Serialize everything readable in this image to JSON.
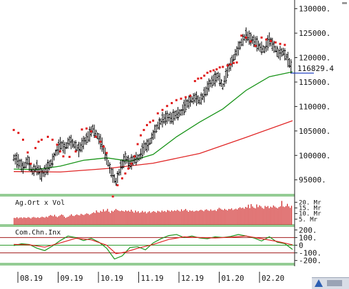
{
  "chart_data": [
    {
      "type": "line",
      "pane": "price",
      "title": "",
      "x_ticks": [
        "08.19",
        "09.19",
        "10.19",
        "11.19",
        "12.19",
        "01.20",
        "02.20"
      ],
      "y_ticks": [
        "130000.",
        "125000.",
        "120000.",
        "115000.",
        "110000.",
        "105000.",
        "100000.",
        "95000."
      ],
      "ylim": [
        92000,
        131500
      ],
      "last_price_label": "116829.4",
      "last_price": 116829.4,
      "series": [
        {
          "style": "ohlc-bars",
          "color": "#000000",
          "points": [
            [
              0,
              99500
            ],
            [
              3,
              98800
            ],
            [
              6,
              97500
            ],
            [
              9,
              99000
            ],
            [
              12,
              96800
            ],
            [
              15,
              97500
            ],
            [
              18,
              96000
            ],
            [
              21,
              97200
            ],
            [
              24,
              98300
            ],
            [
              27,
              100500
            ],
            [
              30,
              102300
            ],
            [
              33,
              101500
            ],
            [
              36,
              103000
            ],
            [
              39,
              102200
            ],
            [
              42,
              101200
            ],
            [
              45,
              102600
            ],
            [
              48,
              103800
            ],
            [
              51,
              105400
            ],
            [
              54,
              104000
            ],
            [
              57,
              102200
            ],
            [
              60,
              99300
            ],
            [
              63,
              96500
            ],
            [
              66,
              94600
            ],
            [
              69,
              97500
            ],
            [
              72,
              99500
            ],
            [
              75,
              98400
            ],
            [
              78,
              99200
            ],
            [
              81,
              99600
            ],
            [
              84,
              101600
            ],
            [
              87,
              102200
            ],
            [
              90,
              104200
            ],
            [
              93,
              106100
            ],
            [
              96,
              107300
            ],
            [
              99,
              107800
            ],
            [
              102,
              107600
            ],
            [
              105,
              108400
            ],
            [
              108,
              108800
            ],
            [
              111,
              110300
            ],
            [
              114,
              111200
            ],
            [
              117,
              111800
            ],
            [
              120,
              111200
            ],
            [
              123,
              112400
            ],
            [
              126,
              114400
            ],
            [
              129,
              115400
            ],
            [
              132,
              116200
            ],
            [
              135,
              114100
            ],
            [
              138,
              117300
            ],
            [
              141,
              119300
            ],
            [
              144,
              121300
            ],
            [
              147,
              123100
            ],
            [
              150,
              124600
            ],
            [
              153,
              123800
            ],
            [
              156,
              123200
            ],
            [
              159,
              122100
            ],
            [
              162,
              121600
            ],
            [
              165,
              123700
            ],
            [
              168,
              122200
            ],
            [
              171,
              120800
            ],
            [
              174,
              121200
            ],
            [
              177,
              119600
            ],
            [
              180,
              117500
            ]
          ]
        },
        {
          "style": "line",
          "color": "#179317",
          "points": [
            [
              0,
              97200
            ],
            [
              15,
              97100
            ],
            [
              30,
              97800
            ],
            [
              45,
              99000
            ],
            [
              60,
              99500
            ],
            [
              75,
              98800
            ],
            [
              90,
              100200
            ],
            [
              105,
              103800
            ],
            [
              120,
              106800
            ],
            [
              135,
              109500
            ],
            [
              150,
              113300
            ],
            [
              165,
              116100
            ],
            [
              180,
              117100
            ]
          ]
        },
        {
          "style": "line",
          "color": "#e02424",
          "points": [
            [
              0,
              96700
            ],
            [
              30,
              96600
            ],
            [
              60,
              97300
            ],
            [
              90,
              98400
            ],
            [
              120,
              100400
            ],
            [
              150,
              103700
            ],
            [
              180,
              107100
            ]
          ]
        },
        {
          "style": "dots",
          "color": "#e01818",
          "points": [
            [
              0,
              105200
            ],
            [
              3,
              104600
            ],
            [
              6,
              103200
            ],
            [
              9,
              100600
            ],
            [
              11,
              98300
            ],
            [
              14,
              101500
            ],
            [
              16,
              102800
            ],
            [
              18,
              103200
            ],
            [
              22,
              103800
            ],
            [
              25,
              103200
            ],
            [
              28,
              102200
            ],
            [
              30,
              100800
            ],
            [
              32,
              99800
            ],
            [
              36,
              99700
            ],
            [
              40,
              100800
            ],
            [
              44,
              105300
            ],
            [
              47,
              105500
            ],
            [
              50,
              104900
            ],
            [
              53,
              103800
            ],
            [
              56,
              102800
            ],
            [
              58,
              101800
            ],
            [
              60,
              100500
            ],
            [
              64,
              91600
            ],
            [
              67,
              93900
            ],
            [
              70,
              95300
            ],
            [
              72,
              96300
            ],
            [
              74,
              97300
            ],
            [
              76,
              98300
            ],
            [
              78,
              99800
            ],
            [
              80,
              102300
            ],
            [
              82,
              104100
            ],
            [
              84,
              105200
            ],
            [
              86,
              106200
            ],
            [
              88,
              106800
            ],
            [
              90,
              107100
            ],
            [
              93,
              108600
            ],
            [
              96,
              109300
            ],
            [
              99,
              110100
            ],
            [
              102,
              110700
            ],
            [
              105,
              111300
            ],
            [
              108,
              111600
            ],
            [
              111,
              111900
            ],
            [
              114,
              112200
            ],
            [
              117,
              115200
            ],
            [
              119,
              115700
            ],
            [
              121,
              115800
            ],
            [
              123,
              116300
            ],
            [
              125,
              116900
            ],
            [
              127,
              117200
            ],
            [
              129,
              117400
            ],
            [
              131,
              117600
            ],
            [
              133,
              118000
            ],
            [
              135,
              118100
            ],
            [
              138,
              118400
            ],
            [
              140,
              118600
            ],
            [
              142,
              118900
            ],
            [
              144,
              119000
            ],
            [
              147,
              124500
            ],
            [
              150,
              124100
            ],
            [
              153,
              123300
            ],
            [
              156,
              122400
            ],
            [
              160,
              124100
            ],
            [
              163,
              123700
            ],
            [
              166,
              123400
            ],
            [
              169,
              123100
            ],
            [
              172,
              122800
            ],
            [
              175,
              122600
            ]
          ]
        }
      ]
    },
    {
      "type": "bar",
      "pane": "volume",
      "title": "Ag.Ort x Vol",
      "y_ticks": [
        "20. Mr",
        "15. Mr",
        "10. Mr",
        "5. Mr"
      ],
      "ylim": [
        0,
        22
      ],
      "values": [
        6.2,
        6.0,
        6.8,
        5.8,
        6.4,
        6.6,
        5.9,
        6.7,
        6.3,
        6.1,
        6.9,
        6.4,
        5.7,
        6.6,
        7.0,
        6.5,
        6.2,
        6.8,
        6.1,
        6.6,
        7.2,
        6.8,
        6.4,
        7.3,
        6.7,
        7.9,
        8.7,
        8.2,
        7.6,
        8.9,
        7.5,
        6.8,
        7.7,
        8.4,
        9.2,
        8.7,
        7.3,
        6.2,
        6.9,
        7.4,
        8.3,
        9.4,
        8.1,
        7.8,
        8.7,
        9.3,
        8.6,
        8.4,
        9.8,
        9.1,
        8.7,
        9.5,
        10.2,
        9.8,
        8.9,
        9.6,
        10.4,
        11.2,
        10.5,
        12.8,
        11.3,
        10.8,
        12.4,
        11.6,
        13.8,
        11.9,
        12.6,
        14.2,
        11.7,
        10.6,
        12.5,
        11.8,
        12.9,
        14.1,
        13.2,
        12.6,
        12.1,
        12.7,
        12.3,
        11.8,
        12.9,
        12.1,
        12.6,
        11.7,
        13.4,
        11.9,
        10.8,
        12.7,
        11.3,
        12.1,
        10.6,
        11.2,
        12.4,
        11.1,
        11.8,
        10.2,
        11.3,
        12.1,
        10.7,
        11.5,
        12.2,
        11.6,
        10.8,
        12.4,
        11.9,
        11.2,
        12.7,
        11.8,
        12.3,
        11.4,
        13.1,
        12.6,
        11.8,
        12.9,
        12.1,
        12.8,
        12.4,
        13.3,
        12.6,
        11.9,
        13.8,
        12.4,
        13.2,
        14.1,
        12.7,
        11.6,
        12.9,
        12.3,
        12.6,
        11.8,
        12.4,
        12.7,
        12.2,
        12.9,
        13.4,
        12.8,
        12.1,
        13.3,
        13.8,
        12.9,
        12.4,
        13.7,
        12.6,
        12.8,
        13.2,
        12.3,
        13.9,
        15.1,
        14.4,
        13.6,
        13.1,
        14.2,
        13.4,
        12.8,
        14.1,
        13.9,
        14.6,
        13.2,
        13.8,
        14.3,
        13.7,
        14.9,
        15.6,
        14.8,
        15.2,
        14.3,
        15.9,
        15.3,
        17.9,
        14.8,
        18.4,
        16.3,
        15.2,
        14.6,
        18.1,
        15.7,
        17.3,
        16.4,
        15.1,
        14.3,
        16.8,
        15.9,
        16.7,
        14.8,
        16.1,
        15.4,
        17.2,
        16.2,
        15.3,
        14.7,
        15.8,
        16.4,
        21.2,
        16.3,
        15.8,
        16.7,
        18.6,
        16.4,
        15.1,
        16.9
      ]
    },
    {
      "type": "line",
      "pane": "cci",
      "title": "Com.Chn.Inx",
      "y_ticks": [
        "200.",
        "100.",
        "0",
        "-100.",
        "-200."
      ],
      "ylim": [
        -230,
        230
      ],
      "reference_lines": [
        100,
        0,
        -100
      ],
      "series": [
        {
          "color": "#179317",
          "points": [
            [
              0,
              -5
            ],
            [
              5,
              20
            ],
            [
              10,
              10
            ],
            [
              15,
              -40
            ],
            [
              20,
              -70
            ],
            [
              25,
              -10
            ],
            [
              30,
              60
            ],
            [
              35,
              120
            ],
            [
              40,
              100
            ],
            [
              45,
              60
            ],
            [
              50,
              90
            ],
            [
              55,
              40
            ],
            [
              60,
              -40
            ],
            [
              65,
              -180
            ],
            [
              70,
              -140
            ],
            [
              75,
              -30
            ],
            [
              80,
              -20
            ],
            [
              85,
              -60
            ],
            [
              90,
              30
            ],
            [
              95,
              85
            ],
            [
              100,
              125
            ],
            [
              105,
              140
            ],
            [
              110,
              100
            ],
            [
              115,
              120
            ],
            [
              120,
              95
            ],
            [
              125,
              85
            ],
            [
              130,
              110
            ],
            [
              135,
              100
            ],
            [
              140,
              115
            ],
            [
              145,
              140
            ],
            [
              150,
              120
            ],
            [
              155,
              95
            ],
            [
              160,
              55
            ],
            [
              165,
              110
            ],
            [
              170,
              40
            ],
            [
              175,
              20
            ],
            [
              180,
              -55
            ]
          ]
        },
        {
          "color": "#e02424",
          "points": [
            [
              0,
              10
            ],
            [
              10,
              5
            ],
            [
              20,
              -25
            ],
            [
              30,
              30
            ],
            [
              40,
              90
            ],
            [
              50,
              70
            ],
            [
              60,
              0
            ],
            [
              66,
              -110
            ],
            [
              72,
              -90
            ],
            [
              80,
              -40
            ],
            [
              90,
              10
            ],
            [
              100,
              75
            ],
            [
              110,
              110
            ],
            [
              120,
              100
            ],
            [
              130,
              95
            ],
            [
              140,
              105
            ],
            [
              150,
              120
            ],
            [
              160,
              85
            ],
            [
              170,
              50
            ],
            [
              180,
              5
            ]
          ]
        }
      ]
    }
  ]
}
